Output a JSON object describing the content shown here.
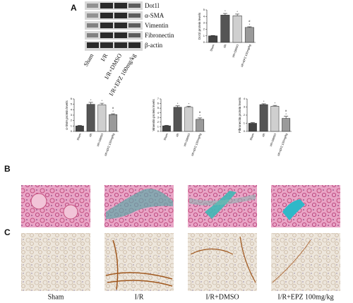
{
  "panel_labels": [
    "A",
    "B",
    "C"
  ],
  "blot": {
    "proteins": [
      "Dot1l",
      "α-SMA",
      "Vimentin",
      "Fibronectin",
      "β-actin"
    ],
    "lanes": [
      "Sham",
      "I/R",
      "I/R+DMSO",
      "I/R+EPZ 100mg/kg"
    ]
  },
  "chart_data": [
    {
      "type": "bar",
      "y_label": "Dot1l protein levels",
      "categories": [
        "Sham",
        "I/R",
        "I/R+DMSO",
        "I/R+EPZ 100mg/kg"
      ],
      "values": [
        1,
        4.2,
        4.1,
        2.3
      ],
      "errors": [
        0.05,
        0.25,
        0.25,
        0.1
      ],
      "stars": [
        null,
        "*",
        "*",
        "*"
      ],
      "hashes": [
        null,
        null,
        null,
        "#"
      ],
      "colors": [
        "#444444",
        "#555555",
        "#cfcfcf",
        "#9a9a9a"
      ],
      "ylim": [
        0,
        5
      ],
      "yticks": [
        0,
        1,
        2,
        3,
        4,
        5
      ]
    },
    {
      "type": "bar",
      "y_label": "α-SMA protein levels",
      "categories": [
        "Sham",
        "I/R",
        "I/R+DMSO",
        "I/R+EPZ 100mg/kg"
      ],
      "values": [
        1,
        5,
        4.9,
        3.1
      ],
      "errors": [
        0.1,
        0.35,
        0.3,
        0.15
      ],
      "stars": [
        null,
        "*",
        "*",
        "*"
      ],
      "hashes": [
        null,
        null,
        null,
        "#"
      ],
      "colors": [
        "#444444",
        "#555555",
        "#cfcfcf",
        "#9a9a9a"
      ],
      "ylim": [
        0,
        6
      ],
      "yticks": [
        0,
        1,
        2,
        3,
        4,
        5,
        6
      ]
    },
    {
      "type": "bar",
      "y_label": "Vimentin protein levels",
      "categories": [
        "Sham",
        "I/R",
        "I/R+DMSO",
        "I/R+EPZ 100mg/kg"
      ],
      "values": [
        1.2,
        5.2,
        5.2,
        2.6
      ],
      "errors": [
        0.1,
        0.3,
        0.2,
        0.3
      ],
      "stars": [
        null,
        "*",
        "*",
        "*"
      ],
      "hashes": [
        null,
        null,
        null,
        "#"
      ],
      "colors": [
        "#444444",
        "#555555",
        "#cfcfcf",
        "#9a9a9a"
      ],
      "ylim": [
        0,
        7
      ],
      "yticks": [
        0,
        1,
        2,
        3,
        4,
        5,
        6,
        7
      ]
    },
    {
      "type": "bar",
      "y_label": "Fibronectin protein levels",
      "categories": [
        "Sham",
        "I/R",
        "I/R+DMSO",
        "I/R+EPZ 100mg/kg"
      ],
      "values": [
        1,
        3.3,
        3.1,
        1.6
      ],
      "errors": [
        0.08,
        0.1,
        0.1,
        0.25
      ],
      "stars": [
        null,
        "*",
        "*",
        "*"
      ],
      "hashes": [
        null,
        null,
        null,
        "#"
      ],
      "colors": [
        "#444444",
        "#555555",
        "#cfcfcf",
        "#9a9a9a"
      ],
      "ylim": [
        0,
        4
      ],
      "yticks": [
        0,
        1,
        2,
        3,
        4
      ]
    }
  ],
  "image_columns": [
    "Sham",
    "I/R",
    "I/R+DMSO",
    "I/R+EPZ 100mg/kg"
  ]
}
